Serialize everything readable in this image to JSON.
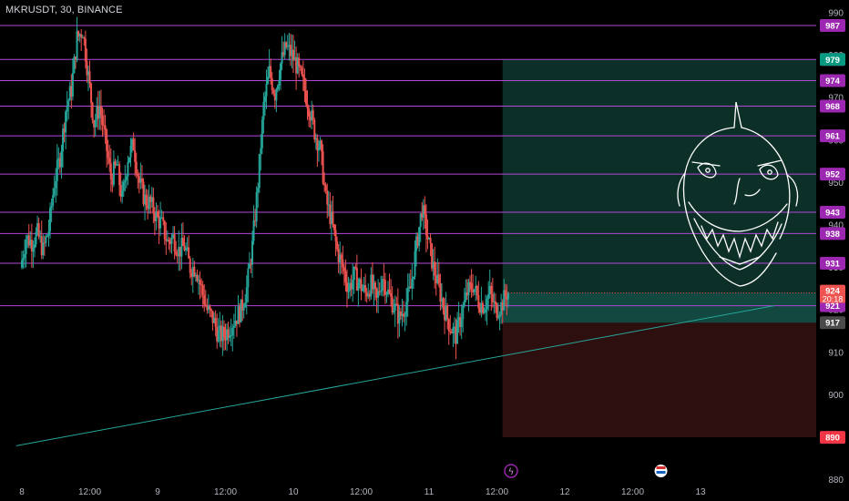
{
  "header": {
    "title": "MKRUSDT, 30, BINANCE"
  },
  "colors": {
    "bull": "#26a69a",
    "bear": "#ef5350",
    "hline": "#b347d9",
    "badge": "#9c27b0",
    "trend": "#26a69a",
    "profit_zone": "#0c2f28",
    "loss_zone": "#2e0f0f",
    "entry_badge": "#4a4a4a",
    "target_badge": "#089981",
    "stop_badge": "#f23645"
  },
  "chart_data": {
    "type": "candlestick",
    "symbol": "MKRUSDT",
    "interval": "30",
    "exchange": "BINANCE",
    "ylim": [
      878,
      993
    ],
    "y_ticks": [
      880,
      890,
      900,
      910,
      920,
      930,
      940,
      950,
      960,
      970,
      980,
      990
    ],
    "x_ticks": [
      {
        "label": "8",
        "t": 0
      },
      {
        "label": "12:00",
        "t": 24
      },
      {
        "label": "9",
        "t": 48
      },
      {
        "label": "12:00",
        "t": 72
      },
      {
        "label": "10",
        "t": 96
      },
      {
        "label": "12:00",
        "t": 120
      },
      {
        "label": "11",
        "t": 144
      },
      {
        "label": "12:00",
        "t": 168
      },
      {
        "label": "12",
        "t": 192
      },
      {
        "label": "12:00",
        "t": 216
      },
      {
        "label": "13",
        "t": 240
      }
    ],
    "horizontal_levels": [
      987,
      979,
      974,
      968,
      961,
      952,
      943,
      938,
      931,
      921
    ],
    "current_price": 924,
    "countdown": "20:18",
    "position": {
      "entry": 917,
      "target": 979,
      "stop": 890,
      "start_t": 170
    },
    "trendline": {
      "from": {
        "t": -2,
        "price": 888
      },
      "to": {
        "t": 266,
        "price": 921
      }
    },
    "event_markers": [
      {
        "t": 173,
        "label": "ϟ"
      },
      {
        "t": 226,
        "label": "flag"
      }
    ],
    "candles_path": [
      [
        0,
        930
      ],
      [
        2,
        937
      ],
      [
        4,
        936
      ],
      [
        6,
        938
      ],
      [
        8,
        934
      ],
      [
        10,
        939
      ],
      [
        12,
        950
      ],
      [
        14,
        956
      ],
      [
        16,
        967
      ],
      [
        18,
        972
      ],
      [
        20,
        984
      ],
      [
        22,
        986
      ],
      [
        24,
        975
      ],
      [
        26,
        964
      ],
      [
        28,
        968
      ],
      [
        30,
        960
      ],
      [
        32,
        951
      ],
      [
        34,
        954
      ],
      [
        36,
        946
      ],
      [
        38,
        956
      ],
      [
        40,
        959
      ],
      [
        42,
        950
      ],
      [
        44,
        946
      ],
      [
        46,
        945
      ],
      [
        48,
        942
      ],
      [
        50,
        940
      ],
      [
        52,
        936
      ],
      [
        54,
        937
      ],
      [
        56,
        934
      ],
      [
        58,
        935
      ],
      [
        60,
        930
      ],
      [
        62,
        930
      ],
      [
        64,
        925
      ],
      [
        66,
        920
      ],
      [
        68,
        918
      ],
      [
        70,
        914
      ],
      [
        72,
        914
      ],
      [
        74,
        916
      ],
      [
        76,
        918
      ],
      [
        78,
        920
      ],
      [
        80,
        925
      ],
      [
        82,
        935
      ],
      [
        84,
        950
      ],
      [
        86,
        968
      ],
      [
        88,
        976
      ],
      [
        90,
        971
      ],
      [
        92,
        978
      ],
      [
        94,
        982
      ],
      [
        96,
        980
      ],
      [
        98,
        977
      ],
      [
        100,
        973
      ],
      [
        102,
        968
      ],
      [
        104,
        962
      ],
      [
        106,
        958
      ],
      [
        108,
        946
      ],
      [
        110,
        941
      ],
      [
        112,
        934
      ],
      [
        114,
        930
      ],
      [
        116,
        925
      ],
      [
        118,
        928
      ],
      [
        120,
        926
      ],
      [
        122,
        924
      ],
      [
        124,
        926
      ],
      [
        126,
        922
      ],
      [
        128,
        928
      ],
      [
        130,
        924
      ],
      [
        132,
        921
      ],
      [
        134,
        918
      ],
      [
        136,
        921
      ],
      [
        138,
        925
      ],
      [
        140,
        935
      ],
      [
        142,
        944
      ],
      [
        144,
        937
      ],
      [
        146,
        930
      ],
      [
        148,
        925
      ],
      [
        150,
        920
      ],
      [
        152,
        916
      ],
      [
        154,
        914
      ],
      [
        156,
        919
      ],
      [
        158,
        924
      ],
      [
        160,
        926
      ],
      [
        162,
        922
      ],
      [
        164,
        921
      ],
      [
        166,
        924
      ],
      [
        168,
        920
      ],
      [
        170,
        921
      ],
      [
        172,
        924
      ]
    ]
  }
}
